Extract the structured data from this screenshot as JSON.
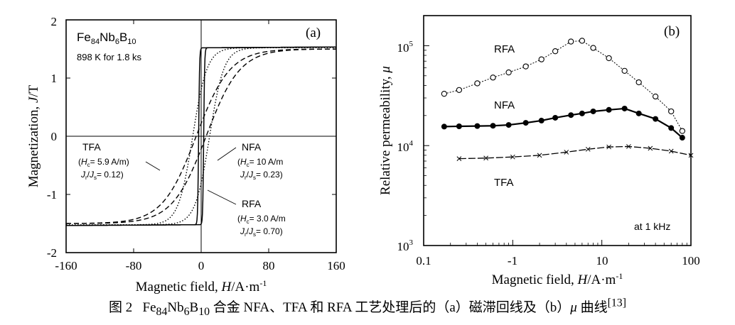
{
  "chart_data": [
    {
      "type": "line",
      "panel_label": "(a)",
      "xlabel_plain": "Magnetic field, ",
      "xlabel_italic": "H",
      "xlabel_unit": "/A·m",
      "xlabel_sup": "-1",
      "ylabel_plain": "Magnetization, ",
      "ylabel_italic": "J",
      "ylabel_unit": "/T",
      "xlim": [
        -160,
        160
      ],
      "ylim": [
        -2,
        2
      ],
      "xticks": [
        "-160",
        "-80",
        "0",
        "80",
        "160"
      ],
      "yticks": [
        "-2",
        "-1",
        "0",
        "1",
        "2"
      ],
      "alloy": {
        "base": "Fe",
        "s1": "84",
        "m1": "Nb",
        "s2": "6",
        "m2": "B",
        "s3": "10"
      },
      "condition": "898 K for 1.8 ks",
      "annotations": {
        "tfa": {
          "name": "TFA",
          "hc": "= 5.9 A/m)",
          "ratio": "= 0.12)"
        },
        "nfa": {
          "name": "NFA",
          "hc": "= 10 A/m",
          "ratio": "= 0.23)"
        },
        "rfa": {
          "name": "RFA",
          "hc": "= 3.0 A/m",
          "ratio": "= 0.70)"
        }
      },
      "series": [
        {
          "id": "RFA",
          "style": "solid",
          "Js": 1.52,
          "Hc": 3.0,
          "a": 1.1,
          "k": 0.014
        },
        {
          "id": "NFA",
          "style": "dotted",
          "Js": 1.52,
          "Hc": 10,
          "a": 17,
          "k": 0.004
        },
        {
          "id": "TFA",
          "style": "dashed",
          "Js": 1.5,
          "Hc": 5.9,
          "a": 40,
          "k": 0
        }
      ]
    },
    {
      "type": "line",
      "panel_label": "(b)",
      "xscale": "log",
      "yscale": "log",
      "xlabel_plain": "Magnetic field, ",
      "xlabel_italic": "H",
      "xlabel_unit": "/A·m",
      "xlabel_sup": "-1",
      "ylabel_plain": "Relative permeability, ",
      "ylabel_italic": "μ",
      "xlim": [
        0.1,
        100
      ],
      "ylim": [
        1000,
        200000
      ],
      "xticks": [
        "0.1",
        "-1",
        "10",
        "100"
      ],
      "yticks": [
        {
          "base": "10",
          "exp": "3"
        },
        {
          "base": "10",
          "exp": "4"
        },
        {
          "base": "10",
          "exp": "5"
        }
      ],
      "frequency_note": "at 1 kHz",
      "series": [
        {
          "name": "RFA",
          "marker": "open-circle",
          "x": [
            0.17,
            0.25,
            0.4,
            0.6,
            0.9,
            1.4,
            2.1,
            3.0,
            4.5,
            6.0,
            8.0,
            12,
            18,
            26,
            40,
            60,
            80
          ],
          "y": [
            33000,
            36000,
            42000,
            48000,
            54000,
            62000,
            73000,
            88000,
            110000,
            112000,
            95000,
            75000,
            56000,
            43000,
            31000,
            22000,
            14000
          ]
        },
        {
          "name": "NFA",
          "marker": "filled-circle",
          "x": [
            0.17,
            0.25,
            0.4,
            0.6,
            0.9,
            1.4,
            2.1,
            3.0,
            4.5,
            6.0,
            8.0,
            12,
            18,
            26,
            40,
            60,
            80
          ],
          "y": [
            15500,
            15600,
            15700,
            15800,
            16100,
            16900,
            17800,
            19000,
            20200,
            21000,
            22000,
            22800,
            23500,
            21000,
            18500,
            15000,
            12000
          ]
        },
        {
          "name": "TFA",
          "marker": "cross",
          "x": [
            0.25,
            0.5,
            1,
            2,
            4,
            7,
            12,
            20,
            35,
            60,
            100
          ],
          "y": [
            7400,
            7500,
            7700,
            8000,
            8600,
            9200,
            9700,
            9800,
            9400,
            8800,
            8000
          ]
        }
      ]
    }
  ],
  "caption": {
    "fig": "图 2",
    "alloy_fe": "Fe",
    "sub84": "84",
    "alloy_nb": "Nb",
    "sub6": "6",
    "alloy_b": "B",
    "sub10": "10",
    "text1": " 合金 NFA、TFA 和 RFA 工艺处理后的（a）磁滞回线及（b）",
    "mu": "μ",
    "text2": " 曲线",
    "ref": "[13]"
  }
}
